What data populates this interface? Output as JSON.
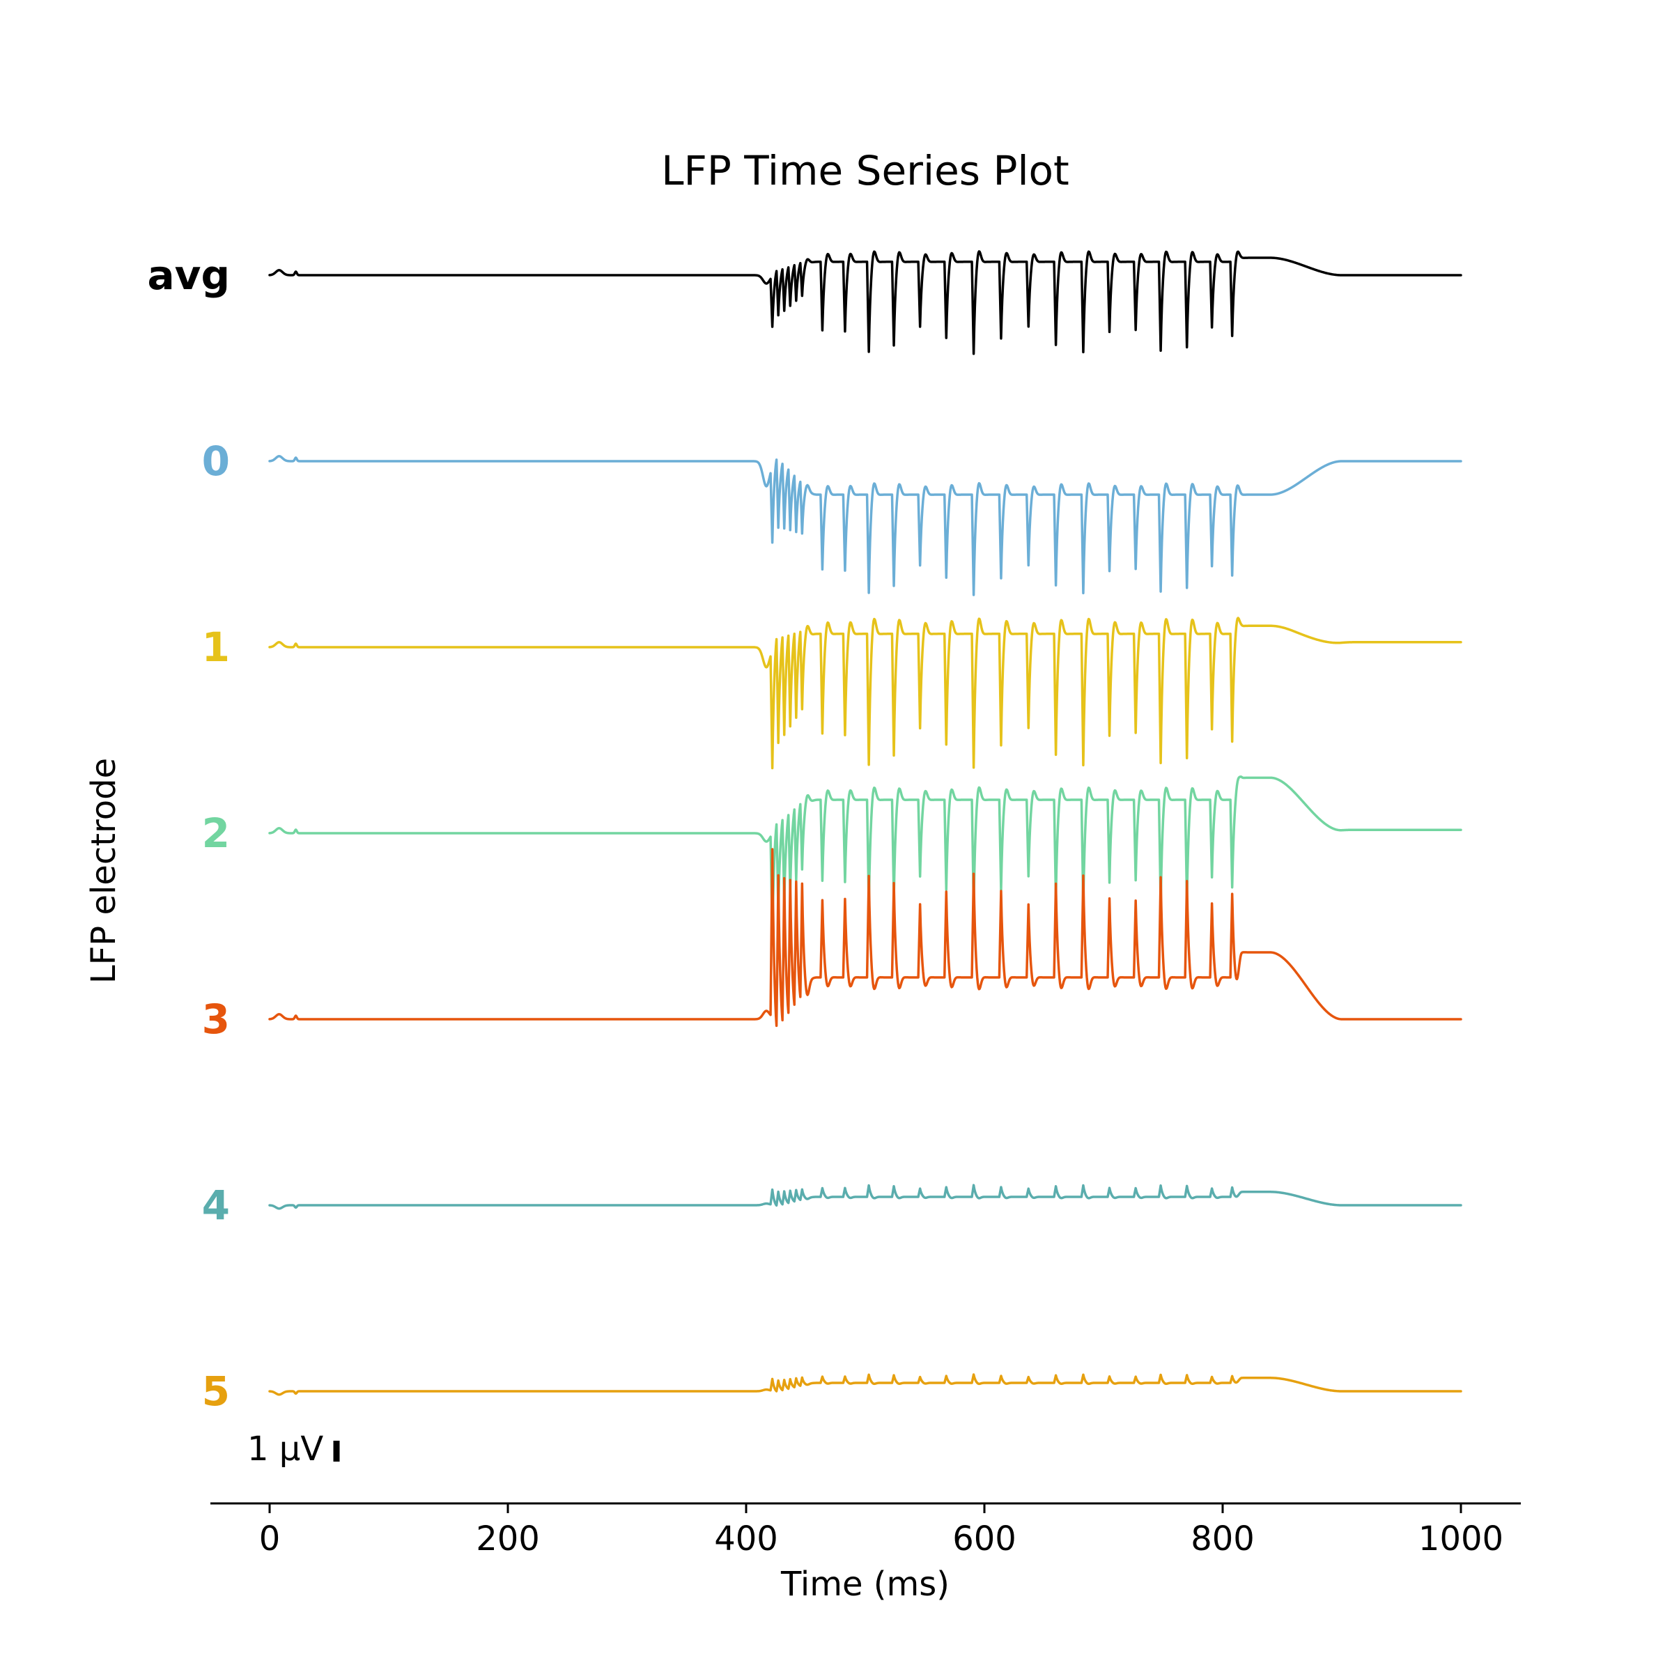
{
  "chart_data": {
    "type": "line",
    "title": "LFP Time Series Plot",
    "xlabel": "Time (ms)",
    "ylabel": "LFP electrode",
    "xlim": [
      0,
      1000
    ],
    "xticks": [
      0,
      200,
      400,
      600,
      800,
      1000
    ],
    "grid": false,
    "scale_bar": {
      "label": "1 μV",
      "value_uV": 1
    },
    "stim": {
      "onset_ms": 420,
      "offset_ms": 810
    },
    "spike_times_ms": [
      422,
      427,
      432,
      437,
      442,
      447,
      464,
      483,
      503,
      524,
      546,
      568,
      591,
      614,
      637,
      660,
      683,
      705,
      727,
      748,
      770,
      791,
      808
    ],
    "series": [
      {
        "name": "avg",
        "color": "#000000",
        "spike_amp": -0.55,
        "lead_amp": -0.3,
        "plateau": 0.08,
        "pre_dip": -0.05,
        "tail": 0.0,
        "transient": 0.03,
        "post_bump": 0.04
      },
      {
        "name": "0",
        "color": "#6BAED6",
        "spike_amp": -0.6,
        "lead_amp": -0.45,
        "plateau": -0.2,
        "pre_dip": -0.15,
        "tail": 0.0,
        "transient": 0.03,
        "post_bump": 0.0
      },
      {
        "name": "1",
        "color": "#E6C21A",
        "spike_amp": -0.8,
        "lead_amp": -0.7,
        "plateau": 0.08,
        "pre_dip": -0.12,
        "tail": 0.03,
        "transient": 0.03,
        "post_bump": 0.08
      },
      {
        "name": "2",
        "color": "#72D5A0",
        "spike_amp": -0.65,
        "lead_amp": -0.6,
        "plateau": 0.2,
        "pre_dip": -0.05,
        "tail": 0.02,
        "transient": 0.03,
        "post_bump": 0.22
      },
      {
        "name": "3",
        "color": "#E6550D",
        "spike_amp": 0.62,
        "lead_amp": 1.0,
        "plateau": 0.25,
        "pre_dip": 0.05,
        "tail": 0.0,
        "transient": 0.03,
        "post_bump": 0.25
      },
      {
        "name": "4",
        "color": "#5AADAD",
        "spike_amp": 0.07,
        "lead_amp": 0.09,
        "plateau": 0.05,
        "pre_dip": 0.01,
        "tail": 0.0,
        "transient": -0.02,
        "post_bump": 0.05
      },
      {
        "name": "5",
        "color": "#E6A00F",
        "spike_amp": 0.05,
        "lead_amp": 0.07,
        "plateau": 0.05,
        "pre_dip": 0.01,
        "tail": 0.0,
        "transient": -0.02,
        "post_bump": 0.05
      }
    ]
  }
}
